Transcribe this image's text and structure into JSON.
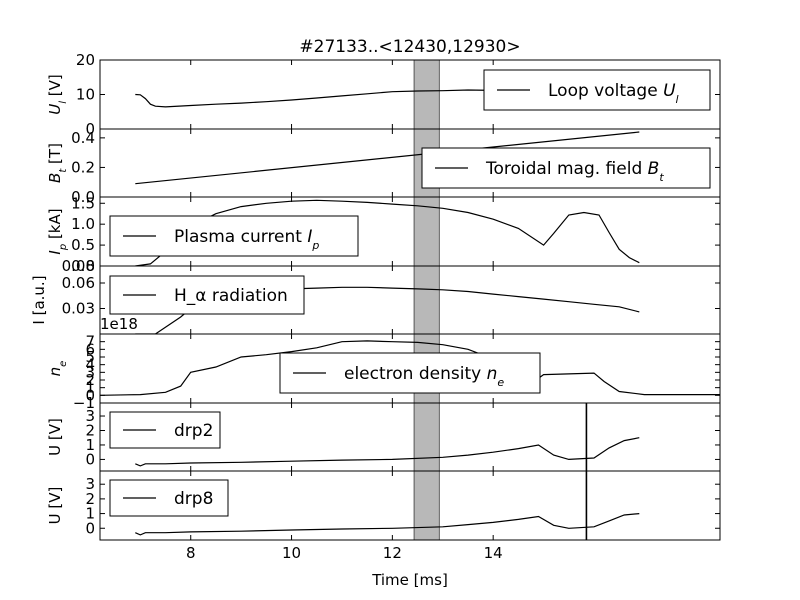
{
  "figure": {
    "title": "#27133..<12430,12930>",
    "xlabel": "Time [ms]",
    "x_ticks": [
      8,
      10,
      12,
      14
    ],
    "xlim": [
      6.2,
      18.5
    ],
    "highlight_band": [
      12.43,
      12.93
    ],
    "highlight_color": "#b8b8b8",
    "marker_time": 15.85,
    "marker_panels": [
      5,
      6
    ]
  },
  "chart_data": [
    {
      "type": "line",
      "ylabel": "U_l [V]",
      "ylabel_html": "U<tspan baseline-shift='sub' font-size='10'>l</tspan> [V]",
      "ylim": [
        0,
        20
      ],
      "yticks": [
        "0",
        "10",
        "20"
      ],
      "ytick_values": [
        0,
        10,
        20
      ],
      "legend": "Loop voltage U_l",
      "legend_loc": "upper right",
      "series": [
        {
          "name": "Loop voltage U_l",
          "x": [
            6.9,
            7.0,
            7.1,
            7.2,
            7.3,
            7.5,
            8.0,
            8.5,
            9.0,
            9.5,
            10.0,
            10.5,
            11.0,
            11.5,
            12.0,
            12.5,
            13.0,
            13.5,
            14.0,
            14.5,
            15.0,
            15.5,
            16.0,
            16.5,
            17.0
          ],
          "y": [
            10.0,
            9.9,
            8.8,
            7.2,
            6.6,
            6.4,
            6.8,
            7.2,
            7.5,
            7.9,
            8.4,
            9.0,
            9.6,
            10.2,
            10.8,
            11.0,
            11.1,
            11.3,
            11.2,
            11.1,
            11.4,
            11.7,
            11.9,
            11.6,
            11.2
          ]
        }
      ]
    },
    {
      "type": "line",
      "ylabel": "B_t [T]",
      "ylim": [
        0,
        0.46
      ],
      "yticks": [
        "0.0",
        "0.2",
        "0.4"
      ],
      "ytick_values": [
        0,
        0.2,
        0.4
      ],
      "legend": "Toroidal mag. field B_t",
      "legend_loc": "lower right",
      "series": [
        {
          "name": "Toroidal mag. field B_t",
          "x": [
            6.9,
            16.9
          ],
          "y": [
            0.09,
            0.44
          ]
        }
      ]
    },
    {
      "type": "line",
      "ylabel": "I_p [kA]",
      "ylim": [
        0,
        1.65
      ],
      "yticks": [
        "0.0",
        "0.5",
        "1.0",
        "1.5"
      ],
      "ytick_values": [
        0,
        0.5,
        1.0,
        1.5
      ],
      "legend": "Plasma current I_p",
      "legend_loc": "lower left",
      "series": [
        {
          "name": "Plasma current I_p",
          "x": [
            6.9,
            7.2,
            7.6,
            8.0,
            8.5,
            9.0,
            9.5,
            10.0,
            10.5,
            11.0,
            11.5,
            12.0,
            12.5,
            13.0,
            13.5,
            14.0,
            14.5,
            15.0,
            15.2,
            15.5,
            15.8,
            16.1,
            16.3,
            16.5,
            16.7,
            16.9
          ],
          "y": [
            0.0,
            0.05,
            0.45,
            0.95,
            1.25,
            1.42,
            1.5,
            1.55,
            1.57,
            1.55,
            1.52,
            1.48,
            1.44,
            1.38,
            1.28,
            1.12,
            0.9,
            0.5,
            0.78,
            1.22,
            1.28,
            1.22,
            0.8,
            0.4,
            0.2,
            0.08
          ]
        }
      ]
    },
    {
      "type": "line",
      "ylabel": "I [a.u.]",
      "ylim": [
        0,
        0.08
      ],
      "yticks": [
        "0.03",
        "0.06",
        "0.08"
      ],
      "ytick_values": [
        0.03,
        0.06,
        0.08
      ],
      "legend": "H_α radiation",
      "legend_loc": "upper left",
      "series": [
        {
          "name": "H_α radiation",
          "x": [
            6.9,
            7.3,
            7.8,
            8.0,
            8.3,
            8.6,
            9.0,
            9.5,
            10.0,
            10.5,
            11.0,
            11.5,
            12.0,
            12.5,
            13.0,
            13.5,
            14.0,
            14.5,
            15.0,
            15.5,
            16.0,
            16.5,
            16.9
          ],
          "y": [
            0.0,
            0.0,
            0.02,
            0.03,
            0.04,
            0.045,
            0.05,
            0.052,
            0.053,
            0.054,
            0.055,
            0.055,
            0.054,
            0.053,
            0.052,
            0.05,
            0.047,
            0.044,
            0.041,
            0.038,
            0.035,
            0.032,
            0.026
          ]
        }
      ]
    },
    {
      "type": "line",
      "ylabel": "n_e",
      "exponent_label": "1e18",
      "ylim": [
        -1,
        8
      ],
      "yticks": [
        "−1",
        "0",
        "1",
        "2",
        "3",
        "4",
        "5",
        "6",
        "7"
      ],
      "ytick_values": [
        -1,
        0,
        1,
        2,
        3,
        4,
        5,
        6,
        7
      ],
      "legend": "electron density n_e",
      "legend_loc": "lower center",
      "series": [
        {
          "name": "electron density n_e",
          "x": [
            6.2,
            7.0,
            7.5,
            7.8,
            8.0,
            8.5,
            9.0,
            9.5,
            10.0,
            10.5,
            11.0,
            11.5,
            12.0,
            12.5,
            13.0,
            13.5,
            13.9,
            14.3,
            14.6,
            15.0,
            15.5,
            16.0,
            16.2,
            16.5,
            17.0,
            18.5
          ],
          "y": [
            0.0,
            0.1,
            0.4,
            1.2,
            3.0,
            3.7,
            5.0,
            5.3,
            5.7,
            6.2,
            7.0,
            7.1,
            7.0,
            6.9,
            6.6,
            6.0,
            5.0,
            1.5,
            0.8,
            2.7,
            2.8,
            2.9,
            1.8,
            0.5,
            0.1,
            0.1
          ]
        }
      ]
    },
    {
      "type": "line",
      "ylabel": "U [V]",
      "ylim": [
        -0.8,
        3.9
      ],
      "yticks": [
        "0",
        "1",
        "2",
        "3"
      ],
      "ytick_values": [
        0,
        1,
        2,
        3
      ],
      "legend": "drp2",
      "legend_loc": "upper left",
      "series": [
        {
          "name": "drp2",
          "x": [
            6.9,
            7.0,
            7.1,
            7.5,
            8.0,
            9.0,
            10.0,
            11.0,
            12.0,
            13.0,
            13.5,
            14.0,
            14.5,
            14.9,
            15.2,
            15.5,
            16.0,
            16.3,
            16.6,
            16.9
          ],
          "y": [
            -0.3,
            -0.45,
            -0.3,
            -0.3,
            -0.25,
            -0.2,
            -0.12,
            -0.05,
            0.0,
            0.15,
            0.3,
            0.5,
            0.75,
            1.0,
            0.3,
            0.0,
            0.1,
            0.8,
            1.3,
            1.5
          ]
        }
      ]
    },
    {
      "type": "line",
      "ylabel": "U [V]",
      "ylim": [
        -0.8,
        3.9
      ],
      "yticks": [
        "0",
        "1",
        "2",
        "3"
      ],
      "ytick_values": [
        0,
        1,
        2,
        3
      ],
      "legend": "drp8",
      "legend_loc": "upper left",
      "series": [
        {
          "name": "drp8",
          "x": [
            6.9,
            7.0,
            7.1,
            7.5,
            8.0,
            9.0,
            10.0,
            11.0,
            12.0,
            13.0,
            13.5,
            14.0,
            14.5,
            14.9,
            15.2,
            15.5,
            16.0,
            16.3,
            16.6,
            16.9
          ],
          "y": [
            -0.3,
            -0.45,
            -0.3,
            -0.3,
            -0.25,
            -0.2,
            -0.12,
            -0.05,
            0.0,
            0.1,
            0.25,
            0.4,
            0.6,
            0.8,
            0.2,
            0.0,
            0.1,
            0.5,
            0.9,
            1.0
          ]
        }
      ]
    }
  ]
}
